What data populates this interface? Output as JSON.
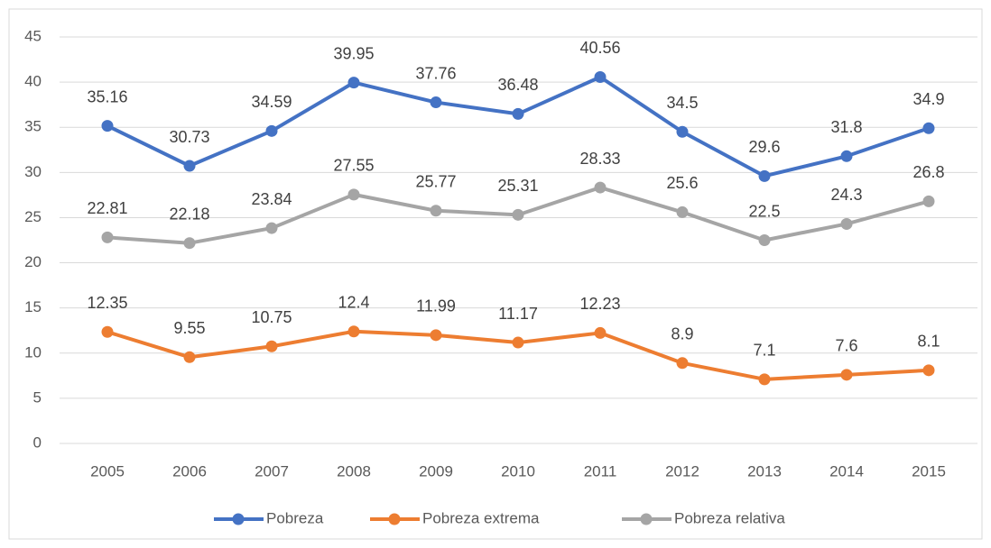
{
  "chart_data": {
    "type": "line",
    "categories": [
      "2005",
      "2006",
      "2007",
      "2008",
      "2009",
      "2010",
      "2011",
      "2012",
      "2013",
      "2014",
      "2015"
    ],
    "series": [
      {
        "name": "Pobreza",
        "color": "#4472c4",
        "values": [
          35.16,
          30.73,
          34.59,
          39.95,
          37.76,
          36.48,
          40.56,
          34.5,
          29.6,
          31.8,
          34.9
        ]
      },
      {
        "name": "Pobreza extrema",
        "color": "#ed7d31",
        "values": [
          12.35,
          9.55,
          10.75,
          12.4,
          11.99,
          11.17,
          12.23,
          8.9,
          7.1,
          7.6,
          8.1
        ]
      },
      {
        "name": "Pobreza relativa",
        "color": "#a5a5a5",
        "values": [
          22.81,
          22.18,
          23.84,
          27.55,
          25.77,
          25.31,
          28.33,
          25.6,
          22.5,
          24.3,
          26.8
        ]
      }
    ],
    "ylim": [
      0,
      45
    ],
    "yticks": [
      0,
      5,
      10,
      15,
      20,
      25,
      30,
      35,
      40,
      45
    ],
    "grid": true,
    "legend": "bottom"
  }
}
